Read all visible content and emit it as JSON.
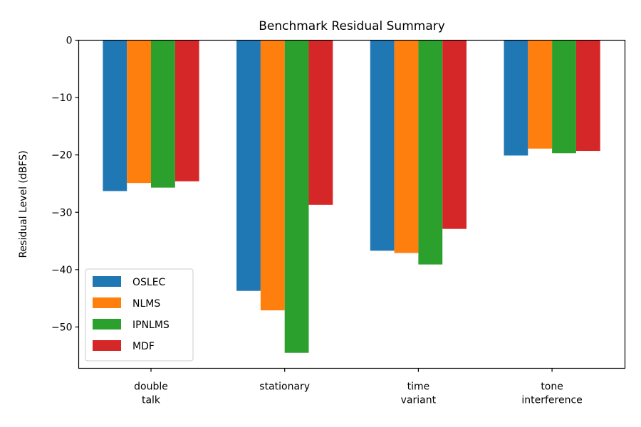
{
  "chart_data": {
    "type": "bar",
    "title": "Benchmark Residual Summary",
    "xlabel": "",
    "ylabel": "Residual Level (dBFS)",
    "categories": [
      [
        "double",
        "talk"
      ],
      [
        "stationary"
      ],
      [
        "time",
        "variant"
      ],
      [
        "tone",
        "interference"
      ]
    ],
    "series": [
      {
        "name": "OSLEC",
        "color": "#1f77b4",
        "values": [
          -26.3,
          -43.7,
          -36.7,
          -20.1
        ]
      },
      {
        "name": "NLMS",
        "color": "#ff7f0e",
        "values": [
          -24.9,
          -47.1,
          -37.1,
          -18.9
        ]
      },
      {
        "name": "IPNLMS",
        "color": "#2ca02c",
        "values": [
          -25.7,
          -54.5,
          -39.1,
          -19.7
        ]
      },
      {
        "name": "MDF",
        "color": "#d62728",
        "values": [
          -24.6,
          -28.7,
          -32.9,
          -19.3
        ]
      }
    ],
    "ylim": [
      -57.2,
      0
    ],
    "yticks": [
      0,
      -10,
      -20,
      -30,
      -40,
      -50
    ],
    "ytick_labels": [
      "0",
      "−10",
      "−20",
      "−30",
      "−40",
      "−50"
    ],
    "legend_position": "lower-left",
    "grid": false
  }
}
